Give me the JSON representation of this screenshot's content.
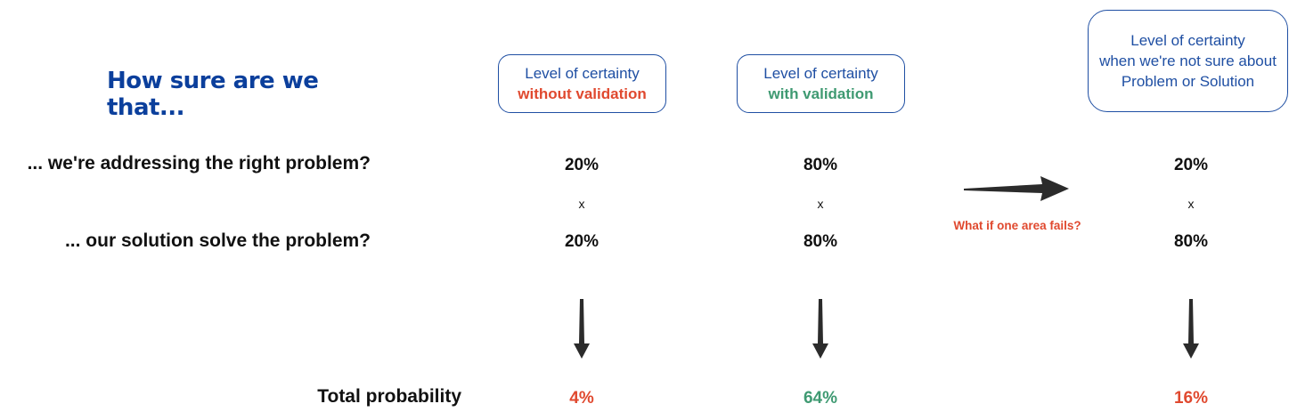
{
  "heading": "How sure are we that...",
  "rows": {
    "problem": "... we're addressing the right problem?",
    "solution": "... our solution solve the problem?",
    "total": "Total probability"
  },
  "columns": [
    {
      "header_line1": "Level of certainty",
      "header_line2": "without validation",
      "header_line2_color": "#e0492f",
      "problem": "20%",
      "times": "x",
      "solution": "20%",
      "total": "4%",
      "total_color": "#e0492f"
    },
    {
      "header_line1": "Level of certainty",
      "header_line2": "with validation",
      "header_line2_color": "#3f9a72",
      "problem": "80%",
      "times": "x",
      "solution": "80%",
      "total": "64%",
      "total_color": "#3f9a72"
    },
    {
      "header_line1": "Level of certainty",
      "header_line2": "when we're not sure about",
      "header_line3": "Problem or Solution",
      "problem": "20%",
      "times": "x",
      "solution": "80%",
      "total": "16%",
      "total_color": "#e0492f"
    }
  ],
  "note": {
    "text": "What if one area fails?",
    "color": "#e0492f"
  },
  "colors": {
    "heading": "#0b3f9c",
    "box_border": "#1f4fa3",
    "arrow": "#2b2b2b"
  }
}
